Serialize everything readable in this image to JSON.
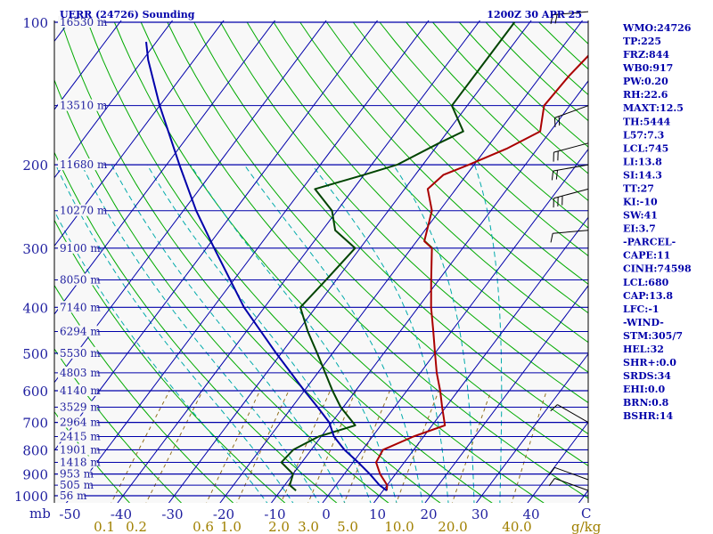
{
  "header": {
    "left": "UERR (24726) Sounding",
    "right": "1200Z 30 APR 25"
  },
  "chart_data": {
    "type": "line",
    "title": "UERR (24726) Sounding",
    "subtitle": "1200Z 30 APR 25",
    "y_axis_unit": "mb",
    "x_axis_unit": "C",
    "mixing_ratio_unit": "g/kg",
    "pressure_levels": [
      100,
      200,
      300,
      400,
      500,
      600,
      700,
      800,
      900,
      1000
    ],
    "pressure_labels": [
      "100",
      "200",
      "300",
      "400",
      "500",
      "600",
      "700",
      "800",
      "900",
      "1000"
    ],
    "temp_ticks": [
      -50,
      -40,
      -30,
      -20,
      -10,
      0,
      10,
      20,
      30,
      40
    ],
    "temp_labels": [
      "-50",
      "-40",
      "-30",
      "-20",
      "-10",
      "0",
      "10",
      "20",
      "30",
      "40"
    ],
    "mixing_ratio_labels": [
      "0.1",
      "0.2",
      "0.6",
      "1.0",
      "2.0",
      "3.0",
      "5.0",
      "10.0",
      "20.0",
      "40.0"
    ],
    "heights": [
      {
        "p": 100,
        "label": "16530 m"
      },
      {
        "p": 150,
        "label": "13510 m"
      },
      {
        "p": 200,
        "label": "11680 m"
      },
      {
        "p": 250,
        "label": "10270 m"
      },
      {
        "p": 300,
        "label": "9100 m"
      },
      {
        "p": 350,
        "label": "8050 m"
      },
      {
        "p": 400,
        "label": "7140 m"
      },
      {
        "p": 450,
        "label": "6294 m"
      },
      {
        "p": 500,
        "label": "5530 m"
      },
      {
        "p": 550,
        "label": "4803 m"
      },
      {
        "p": 600,
        "label": "4140 m"
      },
      {
        "p": 650,
        "label": "3529 m"
      },
      {
        "p": 700,
        "label": "2964 m"
      },
      {
        "p": 750,
        "label": "2415 m"
      },
      {
        "p": 800,
        "label": "1901 m"
      },
      {
        "p": 850,
        "label": "1418 m"
      },
      {
        "p": 900,
        "label": "953 m"
      },
      {
        "p": 950,
        "label": "505 m"
      },
      {
        "p": 1000,
        "label": "56 m"
      }
    ],
    "series": [
      {
        "name": "Temperature",
        "color": "#aa0000",
        "points": [
          [
            975,
            10.7
          ],
          [
            950,
            10.0
          ],
          [
            900,
            7.0
          ],
          [
            850,
            4.5
          ],
          [
            800,
            4.0
          ],
          [
            750,
            8.0
          ],
          [
            710,
            12.5
          ],
          [
            650,
            9.3
          ],
          [
            600,
            6.5
          ],
          [
            550,
            3.2
          ],
          [
            500,
            0.0
          ],
          [
            450,
            -3.5
          ],
          [
            400,
            -7.5
          ],
          [
            350,
            -11.5
          ],
          [
            300,
            -16.0
          ],
          [
            290,
            -18.5
          ],
          [
            250,
            -21.5
          ],
          [
            225,
            -25.5
          ],
          [
            210,
            -24.5
          ],
          [
            200,
            -21.0
          ],
          [
            185,
            -16.0
          ],
          [
            170,
            -12.0
          ],
          [
            150,
            -15.0
          ],
          [
            130,
            -14.5
          ],
          [
            115,
            -13.5
          ],
          [
            100,
            -13.0
          ]
        ]
      },
      {
        "name": "Dewpoint",
        "color": "#004400",
        "points": [
          [
            975,
            -7.0
          ],
          [
            950,
            -9.0
          ],
          [
            900,
            -10.0
          ],
          [
            850,
            -14.0
          ],
          [
            800,
            -13.5
          ],
          [
            750,
            -10.5
          ],
          [
            710,
            -5.0
          ],
          [
            650,
            -10.5
          ],
          [
            600,
            -14.5
          ],
          [
            500,
            -23.0
          ],
          [
            450,
            -28.0
          ],
          [
            400,
            -33.0
          ],
          [
            350,
            -32.0
          ],
          [
            300,
            -31.0
          ],
          [
            275,
            -37.5
          ],
          [
            250,
            -41.0
          ],
          [
            225,
            -47.5
          ],
          [
            210,
            -40.0
          ],
          [
            200,
            -35.0
          ],
          [
            180,
            -30.0
          ],
          [
            170,
            -27.0
          ],
          [
            150,
            -33.0
          ],
          [
            120,
            -33.0
          ],
          [
            100,
            -33.0
          ]
        ]
      },
      {
        "name": "Parcel",
        "color": "#0000aa",
        "points": [
          [
            975,
            10.7
          ],
          [
            950,
            8.5
          ],
          [
            900,
            5.0
          ],
          [
            850,
            1.0
          ],
          [
            800,
            -3.5
          ],
          [
            750,
            -7.5
          ],
          [
            700,
            -10.5
          ],
          [
            650,
            -15.0
          ],
          [
            600,
            -20.0
          ],
          [
            500,
            -31.0
          ],
          [
            400,
            -44.0
          ],
          [
            300,
            -58.5
          ],
          [
            250,
            -67.5
          ],
          [
            200,
            -77.5
          ],
          [
            150,
            -90.0
          ],
          [
            120,
            -99.0
          ],
          [
            110,
            -102.0
          ]
        ]
      }
    ],
    "indices": [
      "WMO:24726",
      "TP:225",
      "FRZ:844",
      "WB0:917",
      "PW:0.20",
      "RH:22.6",
      "MAXT:12.5",
      "TH:5444",
      "L57:7.3",
      "LCL:745",
      "LI:13.8",
      "SI:14.3",
      "TT:27",
      "KI:-10",
      "SW:41",
      "EI:3.7",
      "-PARCEL-",
      "CAPE:11",
      "CINH:74598",
      "LCL:680",
      "CAP:13.8",
      "LFC:-1",
      "-WIND-",
      "STM:305/7",
      "HEL:32",
      "SHR+:0.0",
      "SRDS:34",
      "EHI:0.0",
      "BRN:0.8",
      "BSHR:14"
    ],
    "wind_barbs": [
      {
        "p": 95,
        "dir": 265,
        "spd": 20
      },
      {
        "p": 150,
        "dir": 250,
        "spd": 15
      },
      {
        "p": 180,
        "dir": 255,
        "spd": 20
      },
      {
        "p": 200,
        "dir": 260,
        "spd": 20
      },
      {
        "p": 225,
        "dir": 255,
        "spd": 25
      },
      {
        "p": 275,
        "dir": 265,
        "spd": 10
      },
      {
        "p": 700,
        "dir": 300,
        "spd": 10
      },
      {
        "p": 925,
        "dir": 290,
        "spd": 10
      },
      {
        "p": 975,
        "dir": 290,
        "spd": 10
      }
    ],
    "colors": {
      "plot_background": "#f8f8f8",
      "isobar": "#0000aa",
      "isotherm": "#0000aa",
      "dry_adiabat": "#00aa00",
      "moist_adiabat": "#00aaaa",
      "mixing_ratio": "#907020",
      "frame": "#000000",
      "text": "#0000aa"
    }
  }
}
